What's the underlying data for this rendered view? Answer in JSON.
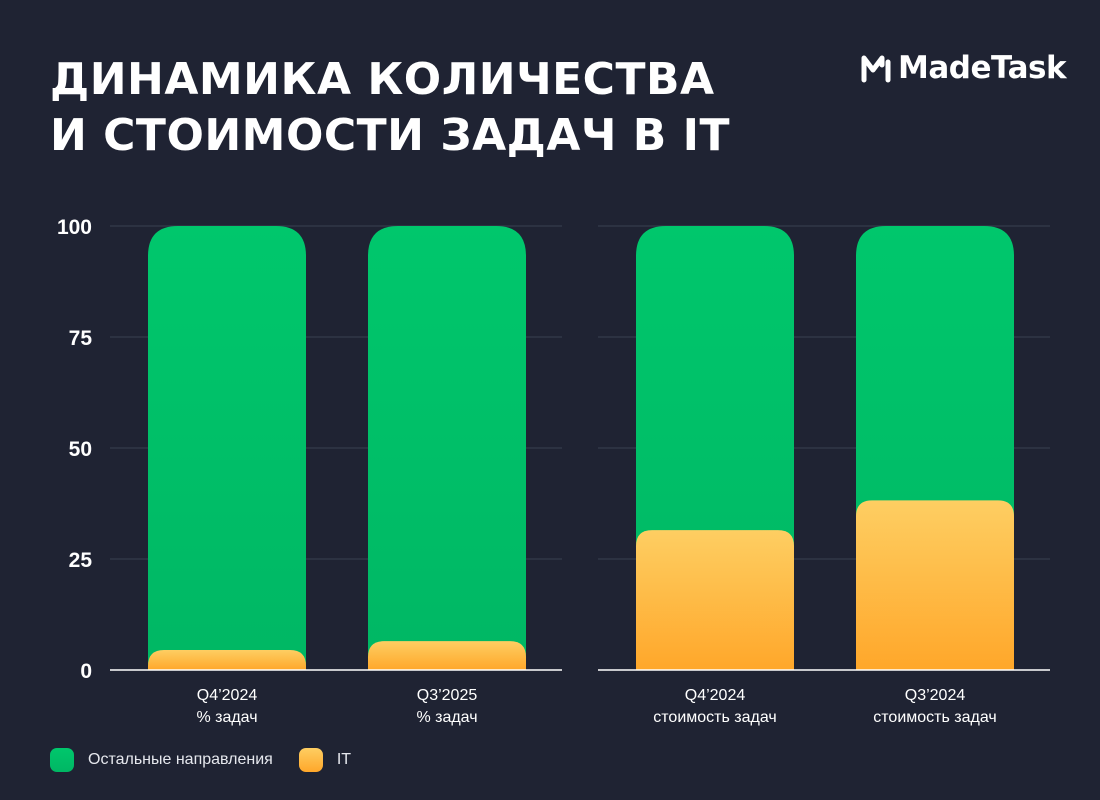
{
  "title": {
    "line1": "ДИНАМИКА КОЛИЧЕСТВА",
    "line2": "И СТОИМОСТИ ЗАДАЧ В IT"
  },
  "logo": {
    "text": "MadeTask",
    "icon": "made-task-m-logo"
  },
  "colors": {
    "background": "#1f2333",
    "green_top": "#00c76c",
    "green_bottom": "#00b764",
    "orange_top": "#fece62",
    "orange_bottom": "#ffa72a",
    "grid": "#3a4052"
  },
  "chart_data": {
    "type": "bar",
    "stacked": true,
    "ylim": [
      0,
      100
    ],
    "yticks": [
      "0",
      "25",
      "50",
      "75",
      "100"
    ],
    "grid": true,
    "legend_position": "bottom-left",
    "legend": [
      {
        "name": "Остальные направления",
        "color": "#00c56b"
      },
      {
        "name": "IT",
        "color": "#fdbe4a"
      }
    ],
    "panels": [
      {
        "categories": [
          {
            "line1": "Q4’2024",
            "line2": "% задач"
          },
          {
            "line1": "Q3’2025",
            "line2": "% задач"
          }
        ],
        "series": [
          {
            "name": "IT",
            "values": [
              4.5,
              6.5
            ]
          },
          {
            "name": "Остальные направления",
            "values": [
              95.5,
              93.5
            ]
          }
        ]
      },
      {
        "categories": [
          {
            "line1": "Q4’2024",
            "line2": "стоимость задач"
          },
          {
            "line1": "Q3’2024",
            "line2": "стоимость задач"
          }
        ],
        "series": [
          {
            "name": "IT",
            "values": [
              31.5,
              38.2
            ]
          },
          {
            "name": "Остальные направления",
            "values": [
              68.5,
              61.8
            ]
          }
        ]
      }
    ]
  }
}
